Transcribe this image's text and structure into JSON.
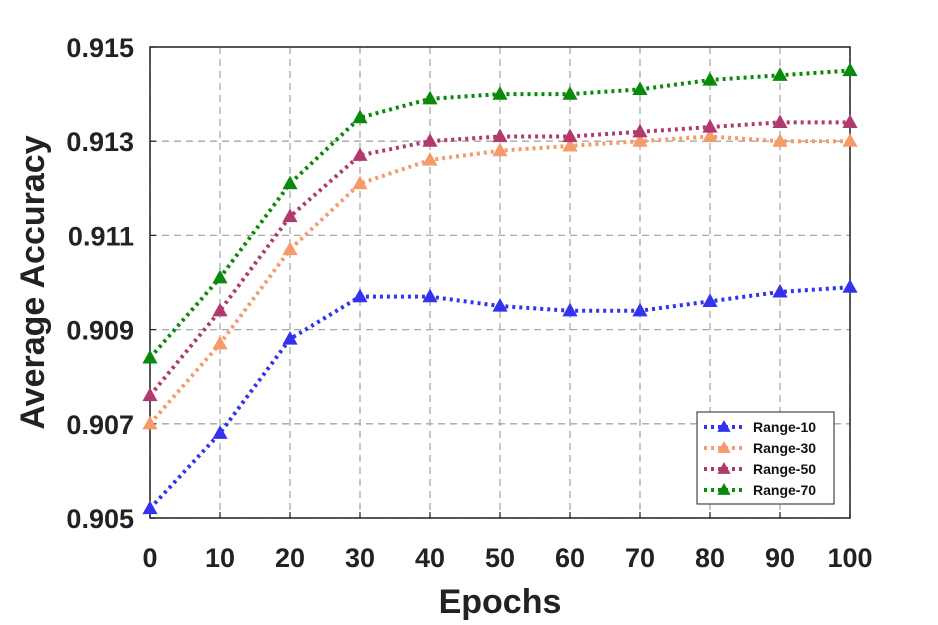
{
  "chart_data": {
    "type": "line",
    "xlabel": "Epochs",
    "ylabel": "Average Accuracy",
    "x": [
      0,
      10,
      20,
      30,
      40,
      50,
      60,
      70,
      80,
      90,
      100
    ],
    "xlim": [
      0,
      100
    ],
    "ylim": [
      0.905,
      0.915
    ],
    "xticks": [
      "0",
      "10",
      "20",
      "30",
      "40",
      "50",
      "60",
      "70",
      "80",
      "90",
      "100"
    ],
    "yticks": [
      "0.905",
      "0.907",
      "0.909",
      "0.911",
      "0.913",
      "0.915"
    ],
    "grid": true,
    "legend_position": "bottom-right",
    "series": [
      {
        "name": "Range-10",
        "color": "#3333ee",
        "marker": "triangle",
        "line_style": "dotted",
        "values": [
          0.9052,
          0.9068,
          0.9088,
          0.9097,
          0.9097,
          0.9095,
          0.9094,
          0.9094,
          0.9096,
          0.9098,
          0.9099
        ]
      },
      {
        "name": "Range-30",
        "color": "#f59a6a",
        "marker": "triangle",
        "line_style": "dotted",
        "values": [
          0.907,
          0.9087,
          0.9107,
          0.9121,
          0.9126,
          0.9128,
          0.9129,
          0.913,
          0.9131,
          0.913,
          0.913
        ]
      },
      {
        "name": "Range-50",
        "color": "#b03a6e",
        "marker": "triangle",
        "line_style": "dotted",
        "values": [
          0.9076,
          0.9094,
          0.9114,
          0.9127,
          0.913,
          0.9131,
          0.9131,
          0.9132,
          0.9133,
          0.9134,
          0.9134
        ]
      },
      {
        "name": "Range-70",
        "color": "#0a8a0a",
        "marker": "triangle",
        "line_style": "dotted",
        "values": [
          0.9084,
          0.9101,
          0.9121,
          0.9135,
          0.9139,
          0.914,
          0.914,
          0.9141,
          0.9143,
          0.9144,
          0.9145
        ]
      }
    ]
  }
}
